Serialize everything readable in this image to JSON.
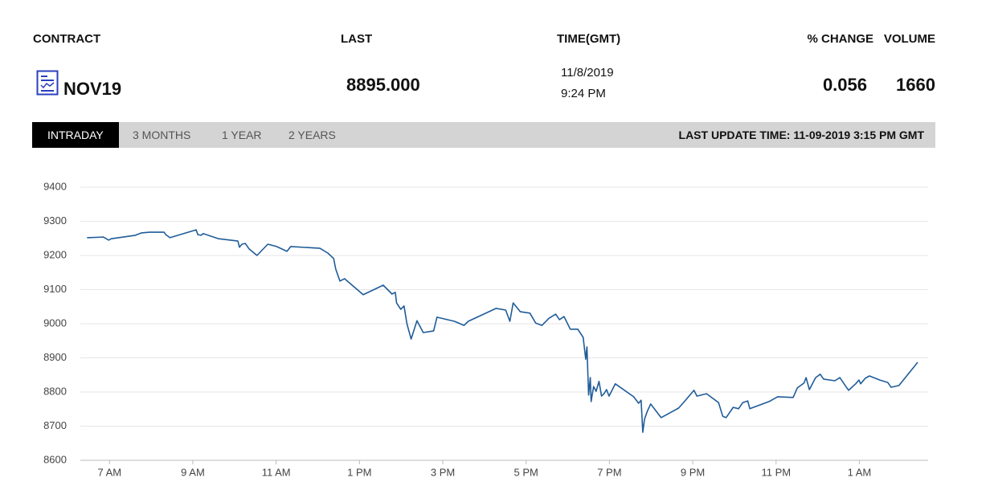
{
  "header": {
    "columns": [
      "CONTRACT",
      "LAST",
      "TIME(GMT)",
      "% CHANGE",
      "VOLUME"
    ]
  },
  "quote": {
    "contract": "NOV19",
    "last": "8895.000",
    "date": "11/8/2019",
    "time": "9:24 PM",
    "change": "0.056",
    "volume": "1660"
  },
  "tabs": [
    "INTRADAY",
    "3 MONTHS",
    "1 YEAR",
    "2 YEARS"
  ],
  "active_tab": 0,
  "last_update": "LAST UPDATE TIME: 11-09-2019 3:15 PM GMT",
  "chart_data": {
    "type": "line",
    "color": "#1f5c99",
    "grid": true,
    "xlim": [
      6.3,
      26.65
    ],
    "xticks": [
      {
        "value": 7,
        "label": "7 AM"
      },
      {
        "value": 9,
        "label": "9 AM"
      },
      {
        "value": 11,
        "label": "11 AM"
      },
      {
        "value": 13,
        "label": "1 PM"
      },
      {
        "value": 15,
        "label": "3 PM"
      },
      {
        "value": 17,
        "label": "5 PM"
      },
      {
        "value": 19,
        "label": "7 PM"
      },
      {
        "value": 21,
        "label": "9 PM"
      },
      {
        "value": 23,
        "label": "11 PM"
      },
      {
        "value": 25,
        "label": "1 AM"
      }
    ],
    "ylim": [
      8600,
      9400
    ],
    "yticks": [
      8600,
      8700,
      8800,
      8900,
      9000,
      9100,
      9200,
      9300,
      9400
    ],
    "x": [
      6.46,
      6.85,
      6.98,
      7.04,
      7.62,
      7.77,
      7.96,
      8.31,
      8.35,
      8.45,
      9.08,
      9.12,
      9.2,
      9.25,
      9.62,
      10.08,
      10.12,
      10.18,
      10.26,
      10.35,
      10.54,
      10.8,
      11.01,
      11.26,
      11.35,
      12.05,
      12.24,
      12.38,
      12.43,
      12.53,
      12.64,
      13.09,
      13.57,
      13.78,
      13.86,
      13.89,
      13.99,
      14.07,
      14.14,
      14.24,
      14.38,
      14.53,
      14.78,
      14.86,
      15.28,
      15.51,
      15.61,
      16.28,
      16.51,
      16.61,
      16.69,
      16.86,
      17.09,
      17.23,
      17.38,
      17.55,
      17.71,
      17.8,
      17.91,
      18.06,
      18.24,
      18.37,
      18.43,
      18.46,
      18.5,
      18.54,
      18.56,
      18.62,
      18.68,
      18.75,
      18.81,
      18.87,
      18.93,
      18.99,
      19.14,
      19.58,
      19.7,
      19.76,
      19.8,
      19.84,
      19.91,
      19.99,
      20.24,
      20.66,
      20.8,
      21.03,
      21.1,
      21.33,
      21.62,
      21.72,
      21.8,
      21.97,
      22.1,
      22.2,
      22.32,
      22.37,
      22.83,
      23.04,
      23.41,
      23.51,
      23.67,
      23.72,
      23.8,
      23.95,
      24.06,
      24.14,
      24.41,
      24.53,
      24.66,
      24.74,
      24.91,
      24.99,
      25.03,
      25.14,
      25.24,
      25.49,
      25.68,
      25.76,
      25.95,
      26.4
    ],
    "values": [
      9252,
      9254,
      9245,
      9249,
      9259,
      9266,
      9268,
      9268,
      9261,
      9252,
      9275,
      9261,
      9259,
      9264,
      9249,
      9242,
      9224,
      9233,
      9235,
      9219,
      9200,
      9233,
      9226,
      9212,
      9226,
      9221,
      9207,
      9191,
      9160,
      9125,
      9132,
      9085,
      9113,
      9087,
      9092,
      9061,
      9042,
      9052,
      9000,
      8955,
      9009,
      8974,
      8979,
      9019,
      9007,
      8995,
      9007,
      9045,
      9040,
      9007,
      9061,
      9035,
      9031,
      9002,
      8995,
      9016,
      9028,
      9012,
      9021,
      8984,
      8984,
      8960,
      8896,
      8932,
      8791,
      8842,
      8772,
      8816,
      8802,
      8831,
      8788,
      8795,
      8807,
      8788,
      8824,
      8786,
      8767,
      8776,
      8682,
      8720,
      8744,
      8765,
      8725,
      8753,
      8772,
      8805,
      8788,
      8795,
      8769,
      8729,
      8725,
      8755,
      8751,
      8769,
      8774,
      8751,
      8772,
      8786,
      8784,
      8812,
      8826,
      8842,
      8807,
      8842,
      8852,
      8838,
      8833,
      8842,
      8819,
      8805,
      8824,
      8835,
      8824,
      8840,
      8847,
      8835,
      8828,
      8814,
      8819,
      8887
    ]
  }
}
